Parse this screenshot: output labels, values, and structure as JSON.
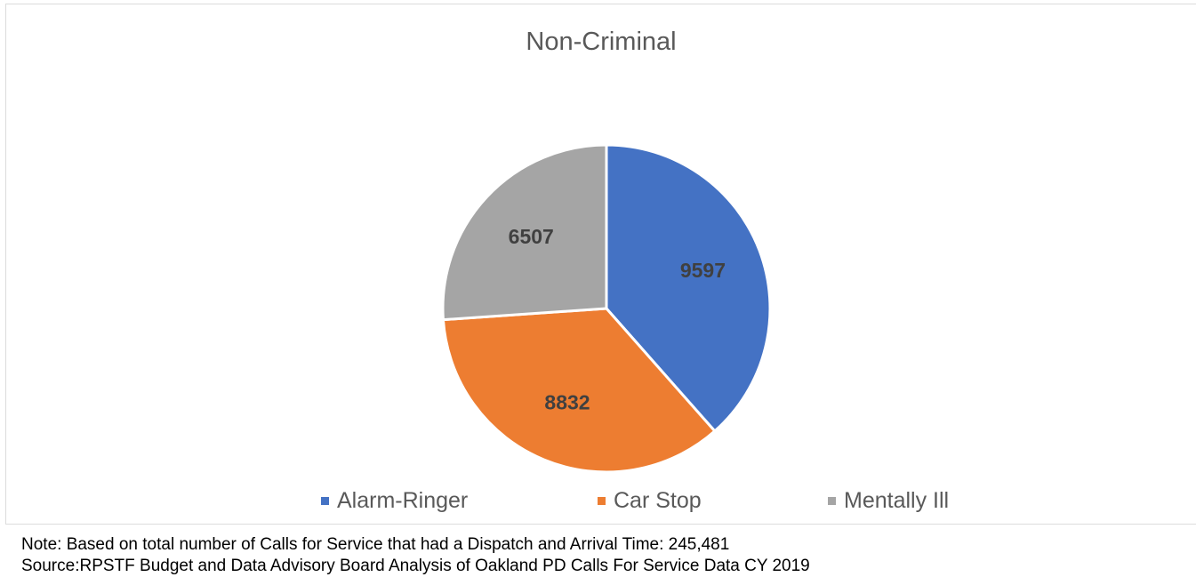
{
  "colors": {
    "alarm_ringer": "#4472C4",
    "car_stop": "#ED7D31",
    "mentally_ill": "#A5A5A5"
  },
  "chart_data": {
    "type": "pie",
    "title": "Non-Criminal",
    "categories": [
      "Alarm-Ringer",
      "Car Stop",
      "Mentally Ill"
    ],
    "values": [
      9597,
      8832,
      6507
    ],
    "colors": [
      "#4472C4",
      "#ED7D31",
      "#A5A5A5"
    ],
    "data_labels": [
      "9597",
      "8832",
      "6507"
    ],
    "legend_position": "bottom"
  },
  "notes": {
    "line1": "Note: Based on total number of Calls for Service that had a Dispatch and Arrival Time: 245,481",
    "line2": "Source:RPSTF Budget and Data Advisory Board Analysis of Oakland PD Calls For Service Data CY 2019"
  }
}
